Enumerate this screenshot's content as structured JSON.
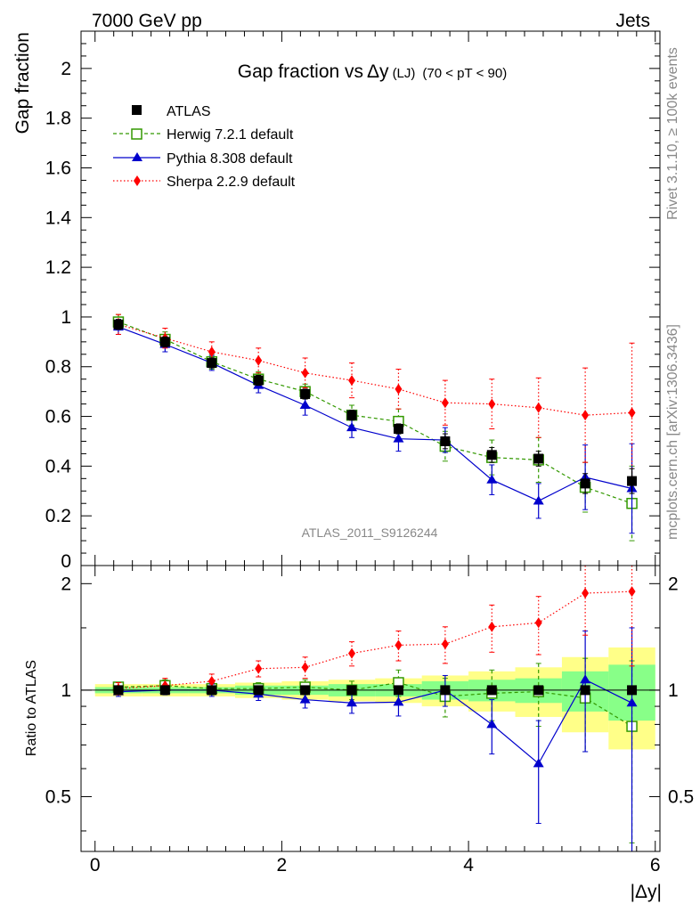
{
  "header": {
    "left": "7000 GeV pp",
    "right": "Jets"
  },
  "side_texts": {
    "rivet": "Rivet 3.1.10, ≥ 100k events",
    "mcplots": "mcplots.cern.ch [arXiv:1306.3436]"
  },
  "chart_data": {
    "type": "line",
    "title_main": "Gap fraction vs",
    "title_sym": "Δy",
    "title_small": "(LJ)",
    "title_range": "(70 < pT <  90)",
    "watermark": "ATLAS_2011_S9126244",
    "xlabel": "|Δy|",
    "ylabel": "Gap fraction",
    "ratio_ylabel": "Ratio to ATLAS",
    "xlim": [
      -0.15,
      6.05
    ],
    "ylim": [
      0,
      2.15
    ],
    "ratio_ylim": [
      0.35,
      2.25
    ],
    "ratio_log": true,
    "x_ticks": [
      0,
      2,
      4,
      6
    ],
    "y_ticks": [
      0.2,
      0.4,
      0.6,
      0.8,
      1,
      1.2,
      1.4,
      1.6,
      1.8,
      2
    ],
    "y_tick_labels": [
      "0.2",
      "0.4",
      "0.6",
      "0.8",
      "1",
      "1.2",
      "1.4",
      "1.6",
      "1.8",
      "2"
    ],
    "y_partial_label": "0",
    "ratio_ticks": [
      0.5,
      1,
      2
    ],
    "ratio_tick_labels": [
      "0.5",
      "1",
      "2"
    ],
    "x": [
      0.25,
      0.75,
      1.25,
      1.75,
      2.25,
      2.75,
      3.25,
      3.75,
      4.25,
      4.75,
      5.25,
      5.75
    ],
    "bin_edges": [
      0,
      0.5,
      1,
      1.5,
      2,
      2.5,
      3,
      3.5,
      4,
      4.5,
      5,
      5.5,
      6
    ],
    "band_inner": [
      0.02,
      0.02,
      0.02,
      0.03,
      0.03,
      0.04,
      0.04,
      0.06,
      0.07,
      0.08,
      0.13,
      0.18
    ],
    "band_outer": [
      0.04,
      0.04,
      0.04,
      0.05,
      0.06,
      0.07,
      0.08,
      0.1,
      0.13,
      0.16,
      0.24,
      0.32
    ],
    "series": [
      {
        "name": "ATLAS",
        "color": "#000000",
        "marker": "square-filled",
        "line": "none",
        "values": [
          0.97,
          0.9,
          0.815,
          0.745,
          0.69,
          0.605,
          0.55,
          0.5,
          0.445,
          0.43,
          0.33,
          0.34
        ],
        "err": [
          0.02,
          0.02,
          0.02,
          0.02,
          0.02,
          0.02,
          0.02,
          0.03,
          0.03,
          0.03,
          0.04,
          0.05
        ],
        "ratio": [
          1,
          1,
          1,
          1,
          1,
          1,
          1,
          1,
          1,
          1,
          1,
          1
        ],
        "ratio_err": [
          0,
          0,
          0,
          0,
          0,
          0,
          0,
          0,
          0,
          0,
          0,
          0
        ]
      },
      {
        "name": "Herwig 7.2.1 default",
        "color": "#339900",
        "marker": "square-open",
        "line": "dashed",
        "values": [
          0.98,
          0.91,
          0.82,
          0.75,
          0.7,
          0.605,
          0.58,
          0.48,
          0.435,
          0.425,
          0.315,
          0.25
        ],
        "err": [
          0.03,
          0.03,
          0.03,
          0.03,
          0.03,
          0.04,
          0.05,
          0.06,
          0.07,
          0.09,
          0.1,
          0.15
        ],
        "ratio": [
          1.02,
          1.03,
          1.01,
          1.01,
          1.02,
          1.0,
          1.05,
          0.96,
          0.98,
          0.99,
          0.95,
          0.79
        ],
        "ratio_err": [
          0.03,
          0.04,
          0.04,
          0.04,
          0.05,
          0.06,
          0.09,
          0.12,
          0.16,
          0.2,
          0.28,
          0.42
        ]
      },
      {
        "name": "Pythia 8.308 default",
        "color": "#0000cc",
        "marker": "triangle",
        "line": "solid",
        "values": [
          0.96,
          0.89,
          0.815,
          0.725,
          0.645,
          0.555,
          0.51,
          0.505,
          0.345,
          0.26,
          0.355,
          0.31
        ],
        "err": [
          0.03,
          0.03,
          0.03,
          0.03,
          0.04,
          0.04,
          0.05,
          0.05,
          0.06,
          0.07,
          0.13,
          0.18
        ],
        "ratio": [
          0.99,
          1.0,
          1.0,
          0.975,
          0.94,
          0.92,
          0.925,
          1.0,
          0.8,
          0.62,
          1.07,
          0.92
        ],
        "ratio_err": [
          0.03,
          0.03,
          0.04,
          0.04,
          0.05,
          0.06,
          0.08,
          0.1,
          0.14,
          0.2,
          0.4,
          0.58
        ]
      },
      {
        "name": "Sherpa 2.2.9 default",
        "color": "#ff0000",
        "marker": "diamond",
        "line": "dotted",
        "values": [
          0.97,
          0.915,
          0.86,
          0.825,
          0.775,
          0.745,
          0.71,
          0.655,
          0.65,
          0.635,
          0.605,
          0.615
        ],
        "err": [
          0.04,
          0.04,
          0.04,
          0.05,
          0.06,
          0.07,
          0.08,
          0.09,
          0.1,
          0.12,
          0.19,
          0.28
        ],
        "ratio": [
          1.01,
          1.03,
          1.06,
          1.15,
          1.16,
          1.27,
          1.34,
          1.35,
          1.51,
          1.55,
          1.88,
          1.9
        ],
        "ratio_err": [
          0.04,
          0.05,
          0.05,
          0.06,
          0.08,
          0.1,
          0.13,
          0.16,
          0.23,
          0.29,
          0.45,
          0.73
        ]
      }
    ]
  }
}
